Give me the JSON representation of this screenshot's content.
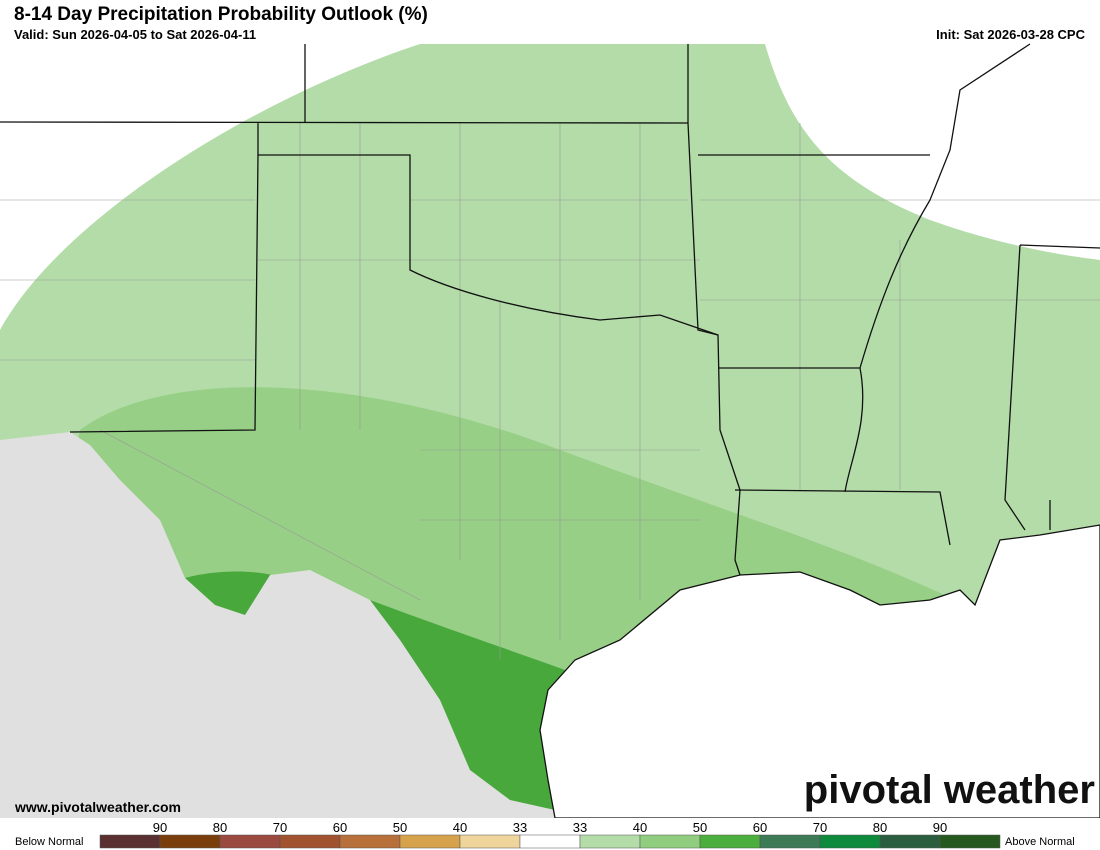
{
  "header": {
    "title": "8-14 Day Precipitation Probability Outlook (%)",
    "valid": "Valid: Sun 2026-04-05 to Sat 2026-04-11",
    "init": "Init: Sat 2026-03-28 CPC"
  },
  "footer": {
    "website": "www.pivotalweather.com",
    "logo": "pivotal weather"
  },
  "legend": {
    "below_label": "Below Normal",
    "above_label": "Above Normal",
    "swatches": [
      "#5a3030",
      "#7a3d0c",
      "#9a4a3e",
      "#a0532e",
      "#b8703a",
      "#d6a24c",
      "#efd59c",
      "#ffffff",
      "#b3dca8",
      "#90cd7e",
      "#4cae3d",
      "#3d7a56",
      "#0e8a3c",
      "#2b5e3e",
      "#26591f"
    ],
    "ticks": [
      "90",
      "80",
      "70",
      "60",
      "50",
      "40",
      "33",
      "33",
      "40",
      "50",
      "60",
      "70",
      "80",
      "90"
    ]
  }
}
